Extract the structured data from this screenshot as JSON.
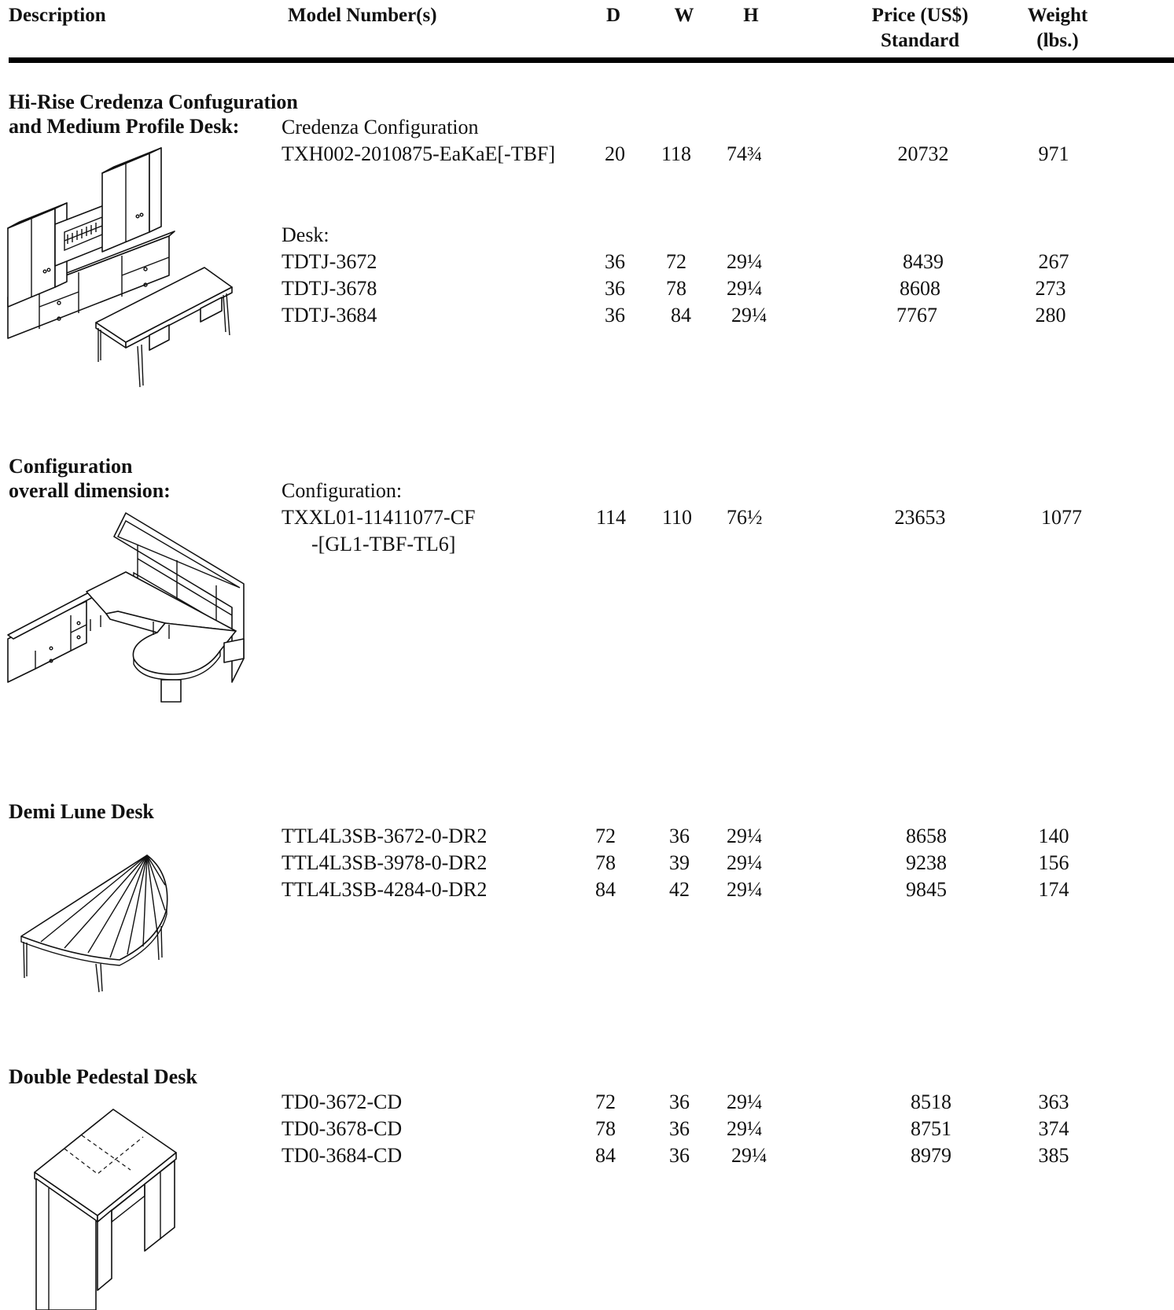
{
  "columns": {
    "description": "Description",
    "model": "Model Number(s)",
    "d": "D",
    "w": "W",
    "h": "H",
    "price_line1": "Price (US$)",
    "price_line2": "Standard",
    "weight_line1": "Weight",
    "weight_line2": "(lbs.)"
  },
  "sections": [
    {
      "title_line1": "Hi-Rise Credenza Confuguration",
      "title_line2": "and Medium Profile Desk:",
      "illustration": "credenza-and-desk-illustration",
      "groups": [
        {
          "label": "Credenza Configuration",
          "rows": [
            {
              "model": "TXH002-2010875-EaKaE[-TBF]",
              "d": "20",
              "w": "118",
              "h": "74¾",
              "price": "20732",
              "weight": "971"
            }
          ]
        },
        {
          "label": "Desk:",
          "rows": [
            {
              "model": "TDTJ-3672",
              "d": "36",
              "w": "72",
              "h": "29¼",
              "price": "8439",
              "weight": "267"
            },
            {
              "model": "TDTJ-3678",
              "d": "36",
              "w": "78",
              "h": "29¼",
              "price": "8608",
              "weight": "273"
            },
            {
              "model": "TDTJ-3684",
              "d": "36",
              "w": "84",
              "h": "29¼",
              "price": "7767",
              "weight": "280"
            }
          ]
        }
      ]
    },
    {
      "title_line1": "Configuration",
      "title_line2": "overall dimension:",
      "illustration": "u-shaped-configuration-illustration",
      "groups": [
        {
          "label": "Configuration:",
          "rows": [
            {
              "model": "TXXL01-11411077-CF",
              "model_line2": "-[GL1-TBF-TL6]",
              "d": "114",
              "w": "110",
              "h": "76½",
              "price": "23653",
              "weight": "1077"
            }
          ]
        }
      ]
    },
    {
      "title_line1": "Demi Lune Desk",
      "illustration": "demi-lune-desk-illustration",
      "groups": [
        {
          "rows": [
            {
              "model": "TTL4L3SB-3672-0-DR2",
              "d": "72",
              "w": "36",
              "h": "29¼",
              "price": "8658",
              "weight": "140"
            },
            {
              "model": "TTL4L3SB-3978-0-DR2",
              "d": "78",
              "w": "39",
              "h": "29¼",
              "price": "9238",
              "weight": "156"
            },
            {
              "model": "TTL4L3SB-4284-0-DR2",
              "d": "84",
              "w": "42",
              "h": "29¼",
              "price": "9845",
              "weight": "174"
            }
          ]
        }
      ]
    },
    {
      "title_line1": "Double Pedestal Desk",
      "illustration": "double-pedestal-desk-illustration",
      "groups": [
        {
          "rows": [
            {
              "model": "TD0-3672-CD",
              "d": "72",
              "w": "36",
              "h": "29¼",
              "price": "8518",
              "weight": "363"
            },
            {
              "model": "TD0-3678-CD",
              "d": "78",
              "w": "36",
              "h": "29¼",
              "price": "8751",
              "weight": "374"
            },
            {
              "model": "TD0-3684-CD",
              "d": "84",
              "w": "36",
              "h": "29¼",
              "price": "8979",
              "weight": "385"
            }
          ]
        }
      ]
    }
  ]
}
